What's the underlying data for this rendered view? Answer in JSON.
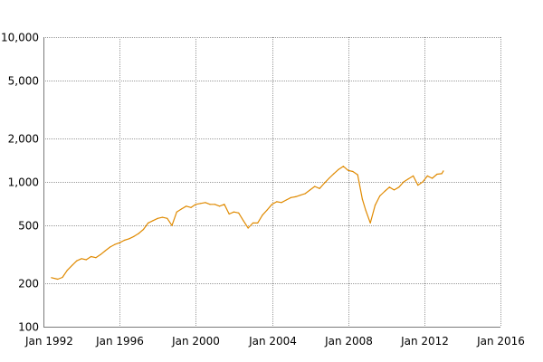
{
  "chart_data": {
    "type": "line",
    "title": "",
    "xlabel": "",
    "ylabel": "",
    "y_scale": "log",
    "ylim": [
      100,
      10000
    ],
    "xlim": [
      "1992-01",
      "2016-01"
    ],
    "grid": true,
    "legend": "none",
    "y_ticks": [
      {
        "value": 100,
        "label": "100"
      },
      {
        "value": 200,
        "label": "200"
      },
      {
        "value": 500,
        "label": "500"
      },
      {
        "value": 1000,
        "label": "1,000"
      },
      {
        "value": 2000,
        "label": "2,000"
      },
      {
        "value": 5000,
        "label": "5,000"
      },
      {
        "value": 10000,
        "label": "10,000"
      }
    ],
    "x_ticks": [
      {
        "value": "1992-01",
        "label": "Jan 1992"
      },
      {
        "value": "1996-01",
        "label": "Jan 1996"
      },
      {
        "value": "2000-01",
        "label": "Jan 2000"
      },
      {
        "value": "2004-01",
        "label": "Jan 2004"
      },
      {
        "value": "2008-01",
        "label": "Jan 2008"
      },
      {
        "value": "2012-01",
        "label": "Jan 2012"
      },
      {
        "value": "2016-01",
        "label": "Jan 2016"
      }
    ],
    "series": [
      {
        "color": "#e08a00",
        "points": [
          [
            "1992-06",
            218
          ],
          [
            "1992-10",
            213
          ],
          [
            "1993-01",
            219
          ],
          [
            "1993-04",
            245
          ],
          [
            "1993-07",
            265
          ],
          [
            "1993-10",
            285
          ],
          [
            "1994-01",
            295
          ],
          [
            "1994-04",
            290
          ],
          [
            "1994-07",
            305
          ],
          [
            "1994-10",
            300
          ],
          [
            "1995-01",
            315
          ],
          [
            "1995-04",
            335
          ],
          [
            "1995-07",
            355
          ],
          [
            "1995-10",
            370
          ],
          [
            "1996-01",
            380
          ],
          [
            "1996-04",
            395
          ],
          [
            "1996-07",
            405
          ],
          [
            "1996-10",
            420
          ],
          [
            "1997-01",
            440
          ],
          [
            "1997-04",
            470
          ],
          [
            "1997-07",
            520
          ],
          [
            "1997-10",
            540
          ],
          [
            "1998-01",
            560
          ],
          [
            "1998-04",
            570
          ],
          [
            "1998-07",
            560
          ],
          [
            "1998-10",
            500
          ],
          [
            "1999-01",
            620
          ],
          [
            "1999-04",
            650
          ],
          [
            "1999-07",
            680
          ],
          [
            "1999-10",
            665
          ],
          [
            "2000-01",
            700
          ],
          [
            "2000-04",
            710
          ],
          [
            "2000-07",
            720
          ],
          [
            "2000-10",
            700
          ],
          [
            "2001-01",
            700
          ],
          [
            "2001-04",
            680
          ],
          [
            "2001-07",
            700
          ],
          [
            "2001-10",
            600
          ],
          [
            "2002-01",
            620
          ],
          [
            "2002-04",
            610
          ],
          [
            "2002-07",
            540
          ],
          [
            "2002-10",
            480
          ],
          [
            "2003-01",
            520
          ],
          [
            "2003-04",
            520
          ],
          [
            "2003-07",
            590
          ],
          [
            "2003-10",
            640
          ],
          [
            "2004-01",
            700
          ],
          [
            "2004-04",
            730
          ],
          [
            "2004-07",
            720
          ],
          [
            "2004-10",
            750
          ],
          [
            "2005-01",
            780
          ],
          [
            "2005-04",
            790
          ],
          [
            "2005-07",
            810
          ],
          [
            "2005-10",
            830
          ],
          [
            "2006-01",
            880
          ],
          [
            "2006-04",
            930
          ],
          [
            "2006-07",
            900
          ],
          [
            "2006-10",
            980
          ],
          [
            "2007-01",
            1060
          ],
          [
            "2007-04",
            1140
          ],
          [
            "2007-07",
            1220
          ],
          [
            "2007-10",
            1280
          ],
          [
            "2008-01",
            1200
          ],
          [
            "2008-04",
            1180
          ],
          [
            "2008-07",
            1120
          ],
          [
            "2008-10",
            760
          ],
          [
            "2008-12",
            640
          ],
          [
            "2009-03",
            520
          ],
          [
            "2009-06",
            690
          ],
          [
            "2009-09",
            800
          ],
          [
            "2009-12",
            860
          ],
          [
            "2010-03",
            920
          ],
          [
            "2010-06",
            880
          ],
          [
            "2010-09",
            920
          ],
          [
            "2010-12",
            1000
          ],
          [
            "2011-03",
            1050
          ],
          [
            "2011-06",
            1100
          ],
          [
            "2011-09",
            950
          ],
          [
            "2011-12",
            1000
          ],
          [
            "2012-03",
            1100
          ],
          [
            "2012-06",
            1060
          ],
          [
            "2012-09",
            1130
          ],
          [
            "2012-12",
            1140
          ],
          [
            "2013-01",
            1190
          ]
        ]
      }
    ]
  }
}
